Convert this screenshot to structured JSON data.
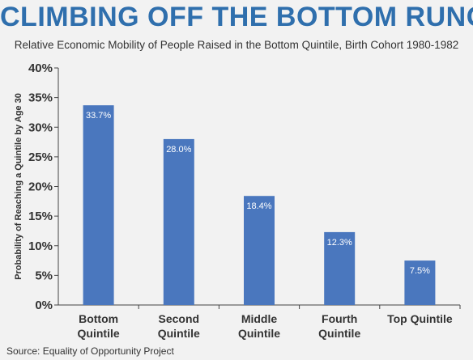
{
  "title": "CLIMBING OFF THE BOTTOM RUNG",
  "subtitle": "Relative Economic Mobility of People Raised in the Bottom Quintile, Birth Cohort 1980-1982",
  "source": "Source: Equality of Opportunity Project",
  "chart_data": {
    "type": "bar",
    "categories": [
      [
        "Bottom",
        "Quintile"
      ],
      [
        "Second",
        "Quintile"
      ],
      [
        "Middle",
        "Quintile"
      ],
      [
        "Fourth",
        "Quintile"
      ],
      [
        "Top Quintile"
      ]
    ],
    "values": [
      33.7,
      28.0,
      18.4,
      12.3,
      7.5
    ],
    "data_labels": [
      "33.7%",
      "28.0%",
      "18.4%",
      "12.3%",
      "7.5%"
    ],
    "ylabel": "Probability of Reaching a Quintile by Age 30",
    "ylim": [
      0,
      40
    ],
    "yticks": [
      0,
      5,
      10,
      15,
      20,
      25,
      30,
      35,
      40
    ],
    "ytick_labels": [
      "0%",
      "5%",
      "10%",
      "15%",
      "20%",
      "25%",
      "30%",
      "35%",
      "40%"
    ],
    "bar_color": "#4a77be",
    "grid": false,
    "legend": "none"
  }
}
